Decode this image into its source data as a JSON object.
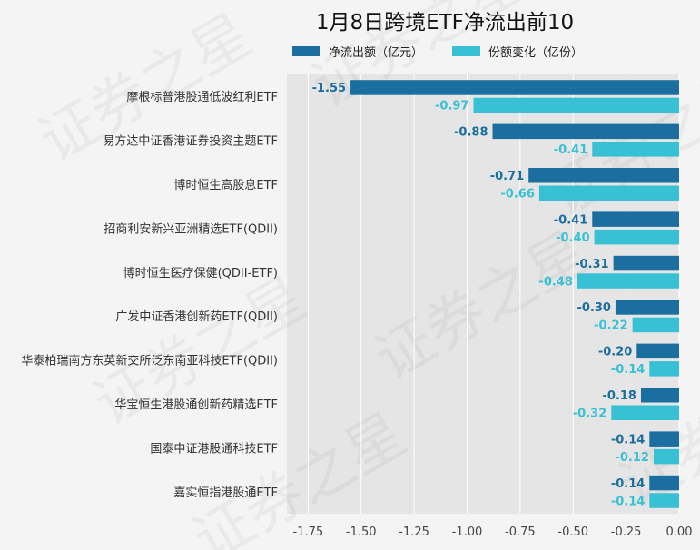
{
  "chart_data": {
    "type": "bar",
    "orientation": "horizontal",
    "title": "1月8日跨境ETF净流出前10",
    "categories": [
      "摩根标普港股通低波红利ETF",
      "易方达中证香港证券投资主题ETF",
      "博时恒生高股息ETF",
      "招商利安新兴亚洲精选ETF(QDII)",
      "博时恒生医疗保健(QDII-ETF)",
      "广发中证香港创新药ETF(QDII)",
      "华泰柏瑞南方东英新交所泛东南亚科技ETF(QDII)",
      "华宝恒生港股通创新药精选ETF",
      "国泰中证港股通科技ETF",
      "嘉实恒指港股通ETF"
    ],
    "series": [
      {
        "name": "净流出额（亿元）",
        "color": "#1a6fa0",
        "values": [
          -1.55,
          -0.88,
          -0.71,
          -0.41,
          -0.31,
          -0.3,
          -0.2,
          -0.18,
          -0.14,
          -0.14
        ],
        "labels": [
          "-1.55",
          "-0.88",
          "-0.71",
          "-0.41",
          "-0.31",
          "-0.30",
          "-0.20",
          "-0.18",
          "-0.14",
          "-0.14"
        ]
      },
      {
        "name": "份额变化（亿份）",
        "color": "#38c0d4",
        "values": [
          -0.97,
          -0.41,
          -0.66,
          -0.4,
          -0.48,
          -0.22,
          -0.14,
          -0.32,
          -0.12,
          -0.14
        ],
        "labels": [
          "-0.97",
          "-0.41",
          "-0.66",
          "-0.40",
          "-0.48",
          "-0.22",
          "-0.14",
          "-0.32",
          "-0.12",
          "-0.14"
        ]
      }
    ],
    "xlim": [
      -1.85,
      0
    ],
    "xticks": [
      -1.75,
      -1.5,
      -1.25,
      -1.0,
      -0.75,
      -0.5,
      -0.25,
      0.0
    ],
    "xtick_labels": [
      "-1.75",
      "-1.50",
      "-1.25",
      "-1.00",
      "-0.75",
      "-0.50",
      "-0.25",
      "0.00"
    ],
    "grid": true,
    "legend_position": "top",
    "watermark": "证券之星"
  }
}
